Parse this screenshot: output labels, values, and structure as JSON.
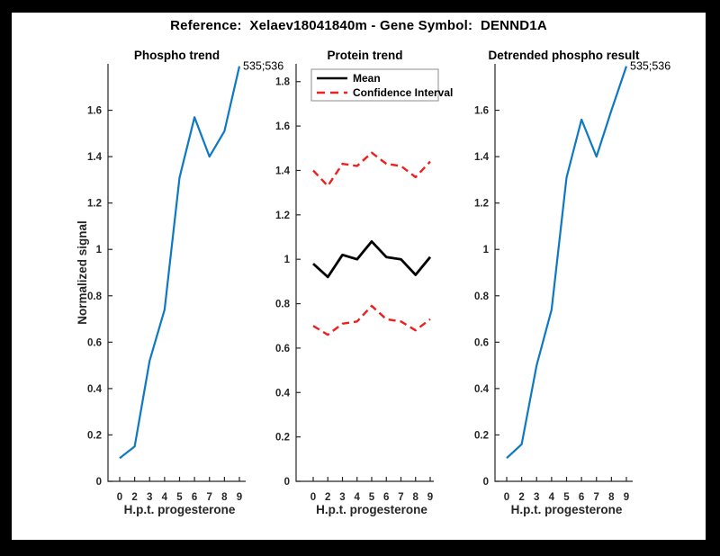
{
  "header": {
    "title": "Reference:  Xelaev18041840m - Gene Symbol:  DENND1A"
  },
  "colors": {
    "axis": "#262626",
    "phospho_blue": "#0d78c4",
    "ci_red": "#ee1f1f",
    "mean_black": "#000000",
    "page_bg": "#ffffff",
    "frame_bg": "#000000"
  },
  "chart_data": [
    {
      "type": "line",
      "title": "Phospho trend",
      "xlabel": "H.p.t. progesterone",
      "ylabel": "Normalized signal",
      "categories": [
        "0",
        "2",
        "3",
        "4",
        "5",
        "6",
        "7",
        "8",
        "9"
      ],
      "ylim": [
        0,
        1.8
      ],
      "yticks": [
        0,
        0.2,
        0.4,
        0.6,
        0.8,
        1.0,
        1.2,
        1.4,
        1.6
      ],
      "grid": false,
      "legend": null,
      "annotation": "535;536",
      "series": [
        {
          "name": "phospho-signal",
          "color": "#0d78c4",
          "style": "solid",
          "values": [
            0.1,
            0.15,
            0.52,
            0.74,
            1.31,
            1.57,
            1.4,
            1.51,
            1.79
          ]
        }
      ]
    },
    {
      "type": "line",
      "title": "Protein trend",
      "xlabel": "H.p.t. progesterone",
      "ylabel": "",
      "categories": [
        "0",
        "2",
        "3",
        "4",
        "5",
        "6",
        "7",
        "8",
        "9"
      ],
      "ylim": [
        0,
        1.88
      ],
      "yticks": [
        0,
        0.2,
        0.4,
        0.6,
        0.8,
        1.0,
        1.2,
        1.4,
        1.6,
        1.8
      ],
      "grid": false,
      "legend": {
        "position": "top-left",
        "entries": [
          {
            "label": "Mean",
            "color": "#000000",
            "style": "solid"
          },
          {
            "label": "Confidence Interval",
            "color": "#ee1f1f",
            "style": "dashed"
          }
        ]
      },
      "annotation": null,
      "series": [
        {
          "name": "Mean",
          "color": "#000000",
          "style": "solid",
          "values": [
            0.98,
            0.92,
            1.02,
            1.0,
            1.08,
            1.01,
            1.0,
            0.93,
            1.01
          ]
        },
        {
          "name": "Confidence Interval (upper)",
          "color": "#ee1f1f",
          "style": "dashed",
          "values": [
            1.4,
            1.33,
            1.43,
            1.42,
            1.48,
            1.43,
            1.42,
            1.37,
            1.44
          ]
        },
        {
          "name": "Confidence Interval (lower)",
          "color": "#ee1f1f",
          "style": "dashed",
          "values": [
            0.7,
            0.66,
            0.71,
            0.72,
            0.79,
            0.73,
            0.72,
            0.68,
            0.73
          ]
        }
      ]
    },
    {
      "type": "line",
      "title": "Detrended phospho result",
      "xlabel": "H.p.t. progesterone",
      "ylabel": "",
      "categories": [
        "0",
        "2",
        "3",
        "4",
        "5",
        "6",
        "7",
        "8",
        "9"
      ],
      "ylim": [
        0,
        1.8
      ],
      "yticks": [
        0,
        0.2,
        0.4,
        0.6,
        0.8,
        1.0,
        1.2,
        1.4,
        1.6
      ],
      "grid": false,
      "legend": null,
      "annotation": "535;536",
      "series": [
        {
          "name": "detrended-phospho-signal",
          "color": "#0d78c4",
          "style": "solid",
          "values": [
            0.1,
            0.16,
            0.5,
            0.74,
            1.31,
            1.56,
            1.4,
            1.6,
            1.79
          ]
        }
      ]
    }
  ]
}
